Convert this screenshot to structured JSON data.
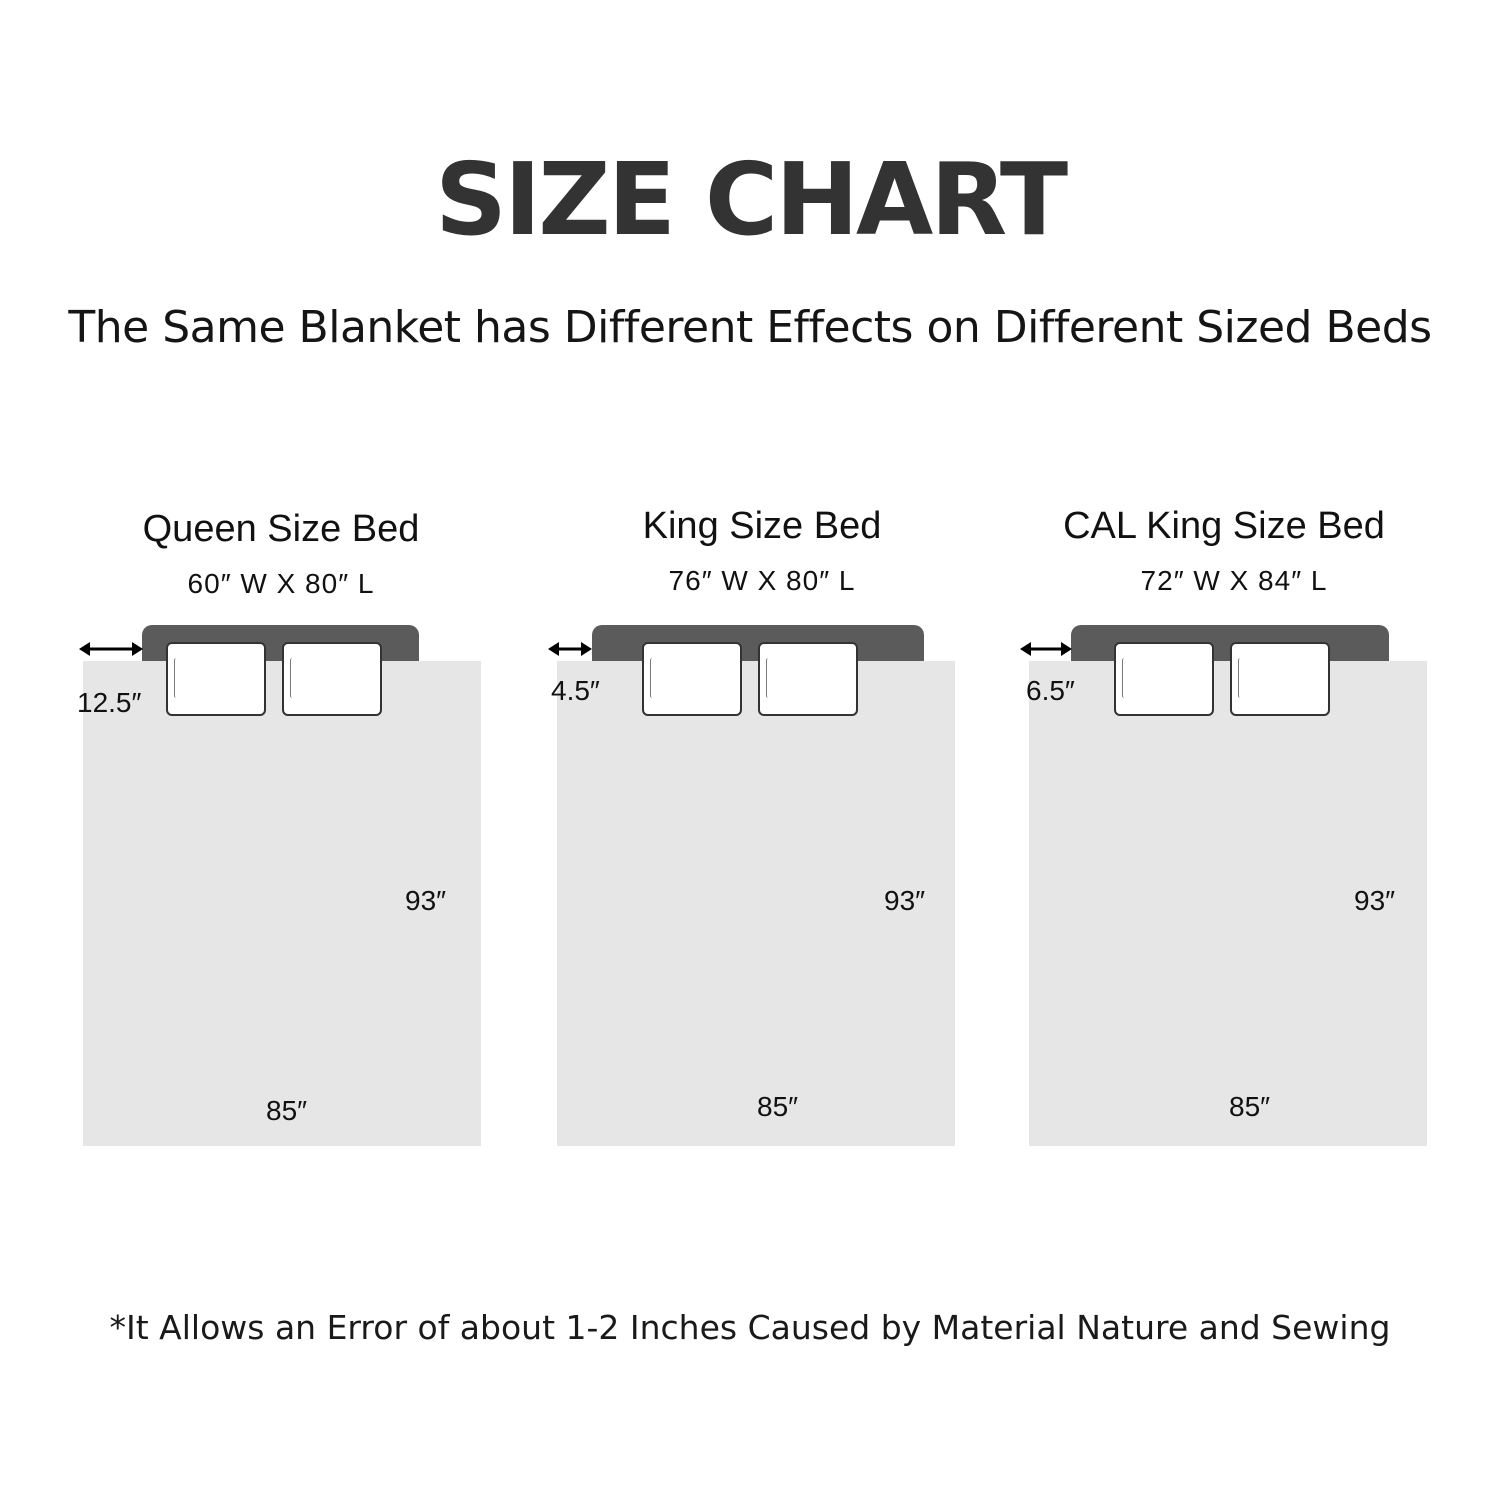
{
  "title": "SIZE CHART",
  "subtitle": "The Same Blanket has Different Effects on Different Sized Beds",
  "footnote": "*It Allows an Error of about 1-2 Inches Caused by Material Nature and Sewing",
  "colors": {
    "headboard": "#5b5b5b",
    "blanket": "#e6e6e6",
    "title": "#333333"
  },
  "beds": [
    {
      "name": "Queen Size Bed",
      "dimensions": "60″ W X 80″ L",
      "overhang": "12.5″",
      "blanket_length": "93″",
      "blanket_width": "85″"
    },
    {
      "name": "King Size Bed",
      "dimensions": "76″ W X 80″ L",
      "overhang": "4.5″",
      "blanket_length": "93″",
      "blanket_width": "85″"
    },
    {
      "name": "CAL King Size Bed",
      "dimensions": "72″ W X 84″ L",
      "overhang": "6.5″",
      "blanket_length": "93″",
      "blanket_width": "85″"
    }
  ]
}
